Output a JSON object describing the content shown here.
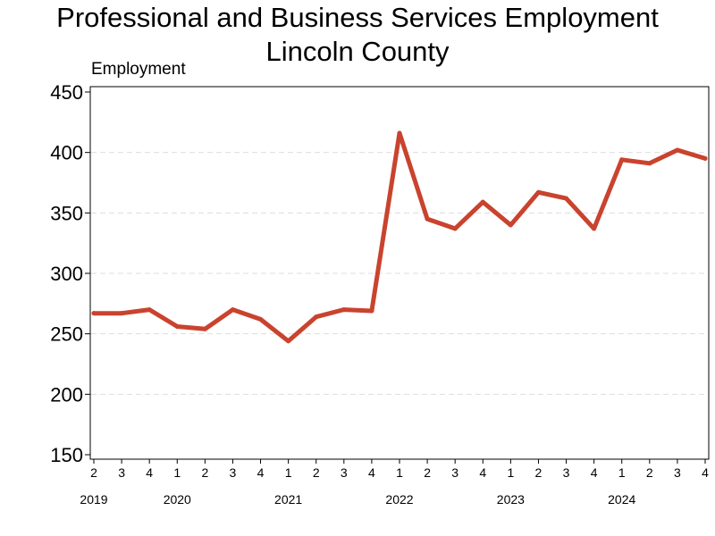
{
  "chart_data": {
    "type": "line",
    "title": "Professional and Business Services Employment",
    "subtitle": "Lincoln County",
    "ylabel": "Employment",
    "xlabel": "",
    "ylim": [
      150,
      450
    ],
    "yticks": [
      150,
      200,
      250,
      300,
      350,
      400,
      450
    ],
    "grid": "horizontal dashed",
    "x_quarters": [
      "2",
      "3",
      "4",
      "1",
      "2",
      "3",
      "4",
      "1",
      "2",
      "3",
      "4",
      "1",
      "2",
      "3",
      "4",
      "1",
      "2",
      "3",
      "4",
      "1",
      "2",
      "3",
      "4"
    ],
    "x_years": [
      {
        "label": "2019",
        "quarter_index": 0
      },
      {
        "label": "2020",
        "quarter_index": 3
      },
      {
        "label": "2021",
        "quarter_index": 7
      },
      {
        "label": "2022",
        "quarter_index": 11
      },
      {
        "label": "2023",
        "quarter_index": 15
      },
      {
        "label": "2024",
        "quarter_index": 19
      }
    ],
    "series": [
      {
        "color": "#c9432e",
        "values": [
          267,
          267,
          270,
          256,
          254,
          270,
          262,
          244,
          264,
          270,
          269,
          416,
          345,
          337,
          359,
          340,
          367,
          362,
          337,
          394,
          391,
          402,
          395
        ]
      }
    ]
  }
}
